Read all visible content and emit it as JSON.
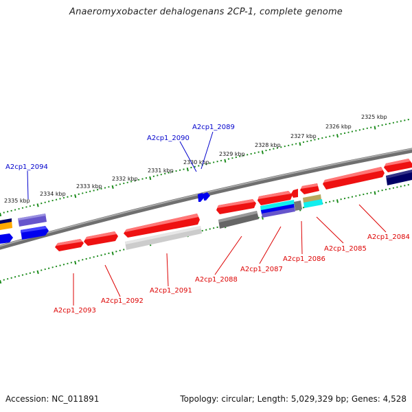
{
  "title": "Anaeromyxobacter dehalogenans 2CP-1, complete genome",
  "footer": {
    "accession": "Accession: NC_011891",
    "topology": "Topology: circular; Length: 5,029,329 bp; Genes: 4,528"
  },
  "colors": {
    "tick": "#1a8a1a",
    "backbone": "#8c8c8c",
    "label_red": "#dd0000",
    "label_blue": "#0000cc",
    "gene_red": "#ee1111",
    "gene_blue": "#0000ee",
    "gene_navy": "#000066",
    "gene_grey_dark": "#666666",
    "gene_grey_light": "#cccccc",
    "gene_purple": "#6655cc",
    "gene_cyan": "#11eeee",
    "gene_khaki": "#b8a860",
    "gene_orange": "#ffaa00"
  },
  "kbp_labels": [
    {
      "text": "2335 kbp"
    },
    {
      "text": "2334 kbp"
    },
    {
      "text": "2333 kbp"
    },
    {
      "text": "2332 kbp"
    },
    {
      "text": "2331 kbp"
    },
    {
      "text": "2330 kbp"
    },
    {
      "text": "2329 kbp"
    },
    {
      "text": "2328 kbp"
    },
    {
      "text": "2327 kbp"
    },
    {
      "text": "2326 kbp"
    },
    {
      "text": "2325 kbp"
    }
  ],
  "gene_labels": [
    {
      "text": "A2cp1_2094",
      "strand": "forward"
    },
    {
      "text": "A2cp1_2090",
      "strand": "forward"
    },
    {
      "text": "A2cp1_2089",
      "strand": "forward"
    },
    {
      "text": "A2cp1_2093",
      "strand": "reverse"
    },
    {
      "text": "A2cp1_2092",
      "strand": "reverse"
    },
    {
      "text": "A2cp1_2091",
      "strand": "reverse"
    },
    {
      "text": "A2cp1_2088",
      "strand": "reverse"
    },
    {
      "text": "A2cp1_2087",
      "strand": "reverse"
    },
    {
      "text": "A2cp1_2086",
      "strand": "reverse"
    },
    {
      "text": "A2cp1_2085",
      "strand": "reverse"
    },
    {
      "text": "A2cp1_2084",
      "strand": "reverse"
    }
  ]
}
